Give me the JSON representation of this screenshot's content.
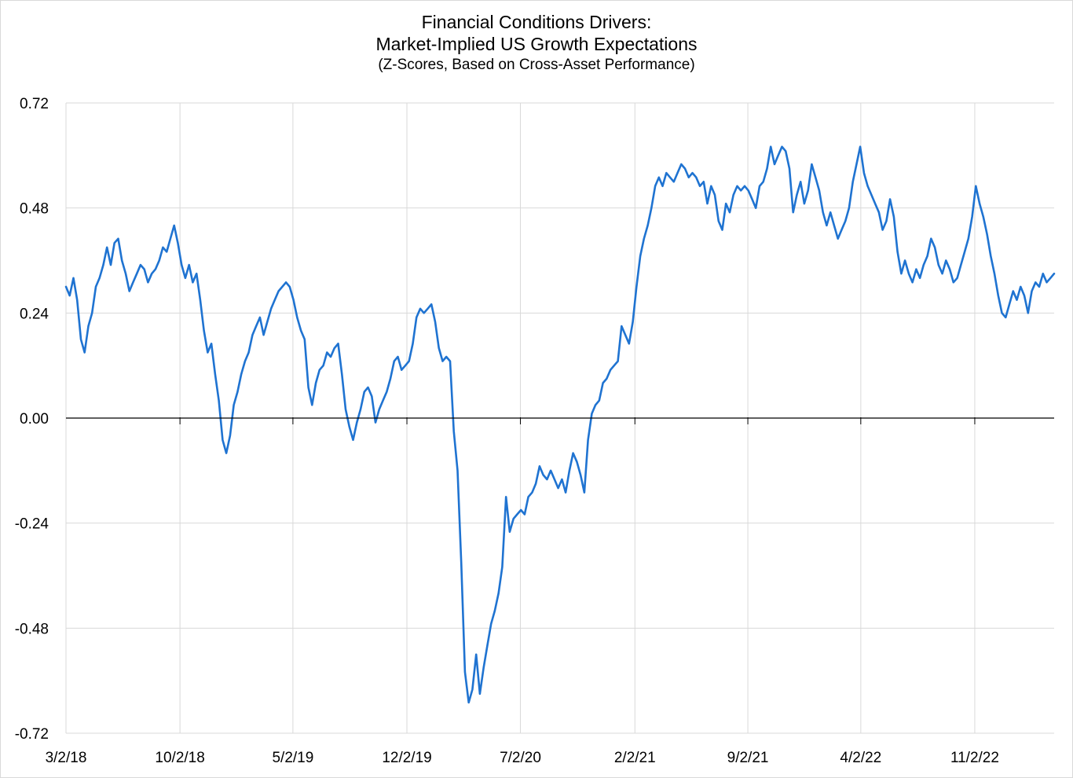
{
  "chart_data": {
    "type": "line",
    "title": "Financial Conditions Drivers:",
    "subtitle": "Market-Implied US Growth Expectations",
    "subtitle2": "(Z-Scores, Based on Cross-Asset Performance)",
    "xlabel": "",
    "ylabel": "",
    "ylim": [
      -0.72,
      0.72
    ],
    "yticks": [
      "0.72",
      "0.48",
      "0.24",
      "0.00",
      "-0.24",
      "-0.48",
      "-0.72"
    ],
    "xticks": [
      "3/2/18",
      "10/2/18",
      "5/2/19",
      "12/2/19",
      "7/2/20",
      "2/2/21",
      "9/2/21",
      "4/2/22",
      "11/2/22"
    ],
    "xlim": [
      "2018-03-02",
      "2023-03-31"
    ],
    "grid": "vertical and horizontal",
    "line_color": "#1f73d1",
    "series": [
      {
        "values": [
          [
            "2018-03-02",
            0.3
          ],
          [
            "2018-03-09",
            0.28
          ],
          [
            "2018-03-16",
            0.32
          ],
          [
            "2018-03-23",
            0.27
          ],
          [
            "2018-03-30",
            0.18
          ],
          [
            "2018-04-06",
            0.15
          ],
          [
            "2018-04-13",
            0.21
          ],
          [
            "2018-04-20",
            0.24
          ],
          [
            "2018-04-27",
            0.3
          ],
          [
            "2018-05-04",
            0.32
          ],
          [
            "2018-05-11",
            0.35
          ],
          [
            "2018-05-18",
            0.39
          ],
          [
            "2018-05-25",
            0.35
          ],
          [
            "2018-06-01",
            0.4
          ],
          [
            "2018-06-08",
            0.41
          ],
          [
            "2018-06-15",
            0.36
          ],
          [
            "2018-06-22",
            0.33
          ],
          [
            "2018-06-29",
            0.29
          ],
          [
            "2018-07-06",
            0.31
          ],
          [
            "2018-07-13",
            0.33
          ],
          [
            "2018-07-20",
            0.35
          ],
          [
            "2018-07-27",
            0.34
          ],
          [
            "2018-08-03",
            0.31
          ],
          [
            "2018-08-10",
            0.33
          ],
          [
            "2018-08-17",
            0.34
          ],
          [
            "2018-08-24",
            0.36
          ],
          [
            "2018-08-31",
            0.39
          ],
          [
            "2018-09-07",
            0.38
          ],
          [
            "2018-09-14",
            0.41
          ],
          [
            "2018-09-21",
            0.44
          ],
          [
            "2018-09-28",
            0.4
          ],
          [
            "2018-10-05",
            0.35
          ],
          [
            "2018-10-12",
            0.32
          ],
          [
            "2018-10-19",
            0.35
          ],
          [
            "2018-10-26",
            0.31
          ],
          [
            "2018-11-02",
            0.33
          ],
          [
            "2018-11-09",
            0.27
          ],
          [
            "2018-11-16",
            0.2
          ],
          [
            "2018-11-23",
            0.15
          ],
          [
            "2018-11-30",
            0.17
          ],
          [
            "2018-12-07",
            0.1
          ],
          [
            "2018-12-14",
            0.04
          ],
          [
            "2018-12-21",
            -0.05
          ],
          [
            "2018-12-28",
            -0.08
          ],
          [
            "2019-01-04",
            -0.04
          ],
          [
            "2019-01-11",
            0.03
          ],
          [
            "2019-01-18",
            0.06
          ],
          [
            "2019-01-25",
            0.1
          ],
          [
            "2019-02-01",
            0.13
          ],
          [
            "2019-02-08",
            0.15
          ],
          [
            "2019-02-15",
            0.19
          ],
          [
            "2019-02-22",
            0.21
          ],
          [
            "2019-03-01",
            0.23
          ],
          [
            "2019-03-08",
            0.19
          ],
          [
            "2019-03-15",
            0.22
          ],
          [
            "2019-03-22",
            0.25
          ],
          [
            "2019-03-29",
            0.27
          ],
          [
            "2019-04-05",
            0.29
          ],
          [
            "2019-04-12",
            0.3
          ],
          [
            "2019-04-19",
            0.31
          ],
          [
            "2019-04-26",
            0.3
          ],
          [
            "2019-05-03",
            0.27
          ],
          [
            "2019-05-10",
            0.23
          ],
          [
            "2019-05-17",
            0.2
          ],
          [
            "2019-05-24",
            0.18
          ],
          [
            "2019-05-31",
            0.07
          ],
          [
            "2019-06-07",
            0.03
          ],
          [
            "2019-06-14",
            0.08
          ],
          [
            "2019-06-21",
            0.11
          ],
          [
            "2019-06-28",
            0.12
          ],
          [
            "2019-07-05",
            0.15
          ],
          [
            "2019-07-12",
            0.14
          ],
          [
            "2019-07-19",
            0.16
          ],
          [
            "2019-07-26",
            0.17
          ],
          [
            "2019-08-02",
            0.1
          ],
          [
            "2019-08-09",
            0.02
          ],
          [
            "2019-08-16",
            -0.02
          ],
          [
            "2019-08-23",
            -0.05
          ],
          [
            "2019-08-30",
            -0.01
          ],
          [
            "2019-09-06",
            0.02
          ],
          [
            "2019-09-13",
            0.06
          ],
          [
            "2019-09-20",
            0.07
          ],
          [
            "2019-09-27",
            0.05
          ],
          [
            "2019-10-04",
            -0.01
          ],
          [
            "2019-10-11",
            0.02
          ],
          [
            "2019-10-18",
            0.04
          ],
          [
            "2019-10-25",
            0.06
          ],
          [
            "2019-11-01",
            0.09
          ],
          [
            "2019-11-08",
            0.13
          ],
          [
            "2019-11-15",
            0.14
          ],
          [
            "2019-11-22",
            0.11
          ],
          [
            "2019-11-29",
            0.12
          ],
          [
            "2019-12-06",
            0.13
          ],
          [
            "2019-12-13",
            0.17
          ],
          [
            "2019-12-20",
            0.23
          ],
          [
            "2019-12-27",
            0.25
          ],
          [
            "2020-01-03",
            0.24
          ],
          [
            "2020-01-10",
            0.25
          ],
          [
            "2020-01-17",
            0.26
          ],
          [
            "2020-01-24",
            0.22
          ],
          [
            "2020-01-31",
            0.16
          ],
          [
            "2020-02-07",
            0.13
          ],
          [
            "2020-02-14",
            0.14
          ],
          [
            "2020-02-21",
            0.13
          ],
          [
            "2020-02-28",
            -0.03
          ],
          [
            "2020-03-06",
            -0.12
          ],
          [
            "2020-03-13",
            -0.33
          ],
          [
            "2020-03-20",
            -0.58
          ],
          [
            "2020-03-27",
            -0.65
          ],
          [
            "2020-04-03",
            -0.62
          ],
          [
            "2020-04-10",
            -0.54
          ],
          [
            "2020-04-17",
            -0.63
          ],
          [
            "2020-04-24",
            -0.57
          ],
          [
            "2020-05-01",
            -0.52
          ],
          [
            "2020-05-08",
            -0.47
          ],
          [
            "2020-05-15",
            -0.44
          ],
          [
            "2020-05-22",
            -0.4
          ],
          [
            "2020-05-29",
            -0.34
          ],
          [
            "2020-06-05",
            -0.18
          ],
          [
            "2020-06-12",
            -0.26
          ],
          [
            "2020-06-19",
            -0.23
          ],
          [
            "2020-06-26",
            -0.22
          ],
          [
            "2020-07-03",
            -0.21
          ],
          [
            "2020-07-10",
            -0.22
          ],
          [
            "2020-07-17",
            -0.18
          ],
          [
            "2020-07-24",
            -0.17
          ],
          [
            "2020-07-31",
            -0.15
          ],
          [
            "2020-08-07",
            -0.11
          ],
          [
            "2020-08-14",
            -0.13
          ],
          [
            "2020-08-21",
            -0.14
          ],
          [
            "2020-08-28",
            -0.12
          ],
          [
            "2020-09-04",
            -0.14
          ],
          [
            "2020-09-11",
            -0.16
          ],
          [
            "2020-09-18",
            -0.14
          ],
          [
            "2020-09-25",
            -0.17
          ],
          [
            "2020-10-02",
            -0.12
          ],
          [
            "2020-10-09",
            -0.08
          ],
          [
            "2020-10-16",
            -0.1
          ],
          [
            "2020-10-23",
            -0.13
          ],
          [
            "2020-10-30",
            -0.17
          ],
          [
            "2020-11-06",
            -0.05
          ],
          [
            "2020-11-13",
            0.01
          ],
          [
            "2020-11-20",
            0.03
          ],
          [
            "2020-11-27",
            0.04
          ],
          [
            "2020-12-04",
            0.08
          ],
          [
            "2020-12-11",
            0.09
          ],
          [
            "2020-12-18",
            0.11
          ],
          [
            "2020-12-25",
            0.12
          ],
          [
            "2021-01-01",
            0.13
          ],
          [
            "2021-01-08",
            0.21
          ],
          [
            "2021-01-15",
            0.19
          ],
          [
            "2021-01-22",
            0.17
          ],
          [
            "2021-01-29",
            0.22
          ],
          [
            "2021-02-05",
            0.3
          ],
          [
            "2021-02-12",
            0.37
          ],
          [
            "2021-02-19",
            0.41
          ],
          [
            "2021-02-26",
            0.44
          ],
          [
            "2021-03-05",
            0.48
          ],
          [
            "2021-03-12",
            0.53
          ],
          [
            "2021-03-19",
            0.55
          ],
          [
            "2021-03-26",
            0.53
          ],
          [
            "2021-04-02",
            0.56
          ],
          [
            "2021-04-09",
            0.55
          ],
          [
            "2021-04-16",
            0.54
          ],
          [
            "2021-04-23",
            0.56
          ],
          [
            "2021-04-30",
            0.58
          ],
          [
            "2021-05-07",
            0.57
          ],
          [
            "2021-05-14",
            0.55
          ],
          [
            "2021-05-21",
            0.56
          ],
          [
            "2021-05-28",
            0.55
          ],
          [
            "2021-06-04",
            0.53
          ],
          [
            "2021-06-11",
            0.54
          ],
          [
            "2021-06-18",
            0.49
          ],
          [
            "2021-06-25",
            0.53
          ],
          [
            "2021-07-02",
            0.51
          ],
          [
            "2021-07-09",
            0.45
          ],
          [
            "2021-07-16",
            0.43
          ],
          [
            "2021-07-23",
            0.49
          ],
          [
            "2021-07-30",
            0.47
          ],
          [
            "2021-08-06",
            0.51
          ],
          [
            "2021-08-13",
            0.53
          ],
          [
            "2021-08-20",
            0.52
          ],
          [
            "2021-08-27",
            0.53
          ],
          [
            "2021-09-03",
            0.52
          ],
          [
            "2021-09-10",
            0.5
          ],
          [
            "2021-09-17",
            0.48
          ],
          [
            "2021-09-24",
            0.53
          ],
          [
            "2021-10-01",
            0.54
          ],
          [
            "2021-10-08",
            0.57
          ],
          [
            "2021-10-15",
            0.62
          ],
          [
            "2021-10-22",
            0.58
          ],
          [
            "2021-10-29",
            0.6
          ],
          [
            "2021-11-05",
            0.62
          ],
          [
            "2021-11-12",
            0.61
          ],
          [
            "2021-11-19",
            0.57
          ],
          [
            "2021-11-26",
            0.47
          ],
          [
            "2021-12-03",
            0.51
          ],
          [
            "2021-12-10",
            0.54
          ],
          [
            "2021-12-17",
            0.49
          ],
          [
            "2021-12-24",
            0.52
          ],
          [
            "2021-12-31",
            0.58
          ],
          [
            "2022-01-07",
            0.55
          ],
          [
            "2022-01-14",
            0.52
          ],
          [
            "2022-01-21",
            0.47
          ],
          [
            "2022-01-28",
            0.44
          ],
          [
            "2022-02-04",
            0.47
          ],
          [
            "2022-02-11",
            0.44
          ],
          [
            "2022-02-18",
            0.41
          ],
          [
            "2022-02-25",
            0.43
          ],
          [
            "2022-03-04",
            0.45
          ],
          [
            "2022-03-11",
            0.48
          ],
          [
            "2022-03-18",
            0.54
          ],
          [
            "2022-03-25",
            0.58
          ],
          [
            "2022-04-01",
            0.62
          ],
          [
            "2022-04-08",
            0.56
          ],
          [
            "2022-04-15",
            0.53
          ],
          [
            "2022-04-22",
            0.51
          ],
          [
            "2022-04-29",
            0.49
          ],
          [
            "2022-05-06",
            0.47
          ],
          [
            "2022-05-13",
            0.43
          ],
          [
            "2022-05-20",
            0.45
          ],
          [
            "2022-05-27",
            0.5
          ],
          [
            "2022-06-03",
            0.46
          ],
          [
            "2022-06-10",
            0.38
          ],
          [
            "2022-06-17",
            0.33
          ],
          [
            "2022-06-24",
            0.36
          ],
          [
            "2022-07-01",
            0.33
          ],
          [
            "2022-07-08",
            0.31
          ],
          [
            "2022-07-15",
            0.34
          ],
          [
            "2022-07-22",
            0.32
          ],
          [
            "2022-07-29",
            0.35
          ],
          [
            "2022-08-05",
            0.37
          ],
          [
            "2022-08-12",
            0.41
          ],
          [
            "2022-08-19",
            0.39
          ],
          [
            "2022-08-26",
            0.35
          ],
          [
            "2022-09-02",
            0.33
          ],
          [
            "2022-09-09",
            0.36
          ],
          [
            "2022-09-16",
            0.34
          ],
          [
            "2022-09-23",
            0.31
          ],
          [
            "2022-09-30",
            0.32
          ],
          [
            "2022-10-07",
            0.35
          ],
          [
            "2022-10-14",
            0.38
          ],
          [
            "2022-10-21",
            0.41
          ],
          [
            "2022-10-28",
            0.46
          ],
          [
            "2022-11-04",
            0.53
          ],
          [
            "2022-11-11",
            0.49
          ],
          [
            "2022-11-18",
            0.46
          ],
          [
            "2022-11-25",
            0.42
          ],
          [
            "2022-12-02",
            0.37
          ],
          [
            "2022-12-09",
            0.33
          ],
          [
            "2022-12-16",
            0.28
          ],
          [
            "2022-12-23",
            0.24
          ],
          [
            "2022-12-30",
            0.23
          ],
          [
            "2023-01-06",
            0.26
          ],
          [
            "2023-01-13",
            0.29
          ],
          [
            "2023-01-20",
            0.27
          ],
          [
            "2023-01-27",
            0.3
          ],
          [
            "2023-02-03",
            0.28
          ],
          [
            "2023-02-10",
            0.24
          ],
          [
            "2023-02-17",
            0.29
          ],
          [
            "2023-02-24",
            0.31
          ],
          [
            "2023-03-03",
            0.3
          ],
          [
            "2023-03-10",
            0.33
          ],
          [
            "2023-03-17",
            0.31
          ],
          [
            "2023-03-24",
            0.32
          ],
          [
            "2023-03-31",
            0.33
          ]
        ]
      }
    ]
  }
}
